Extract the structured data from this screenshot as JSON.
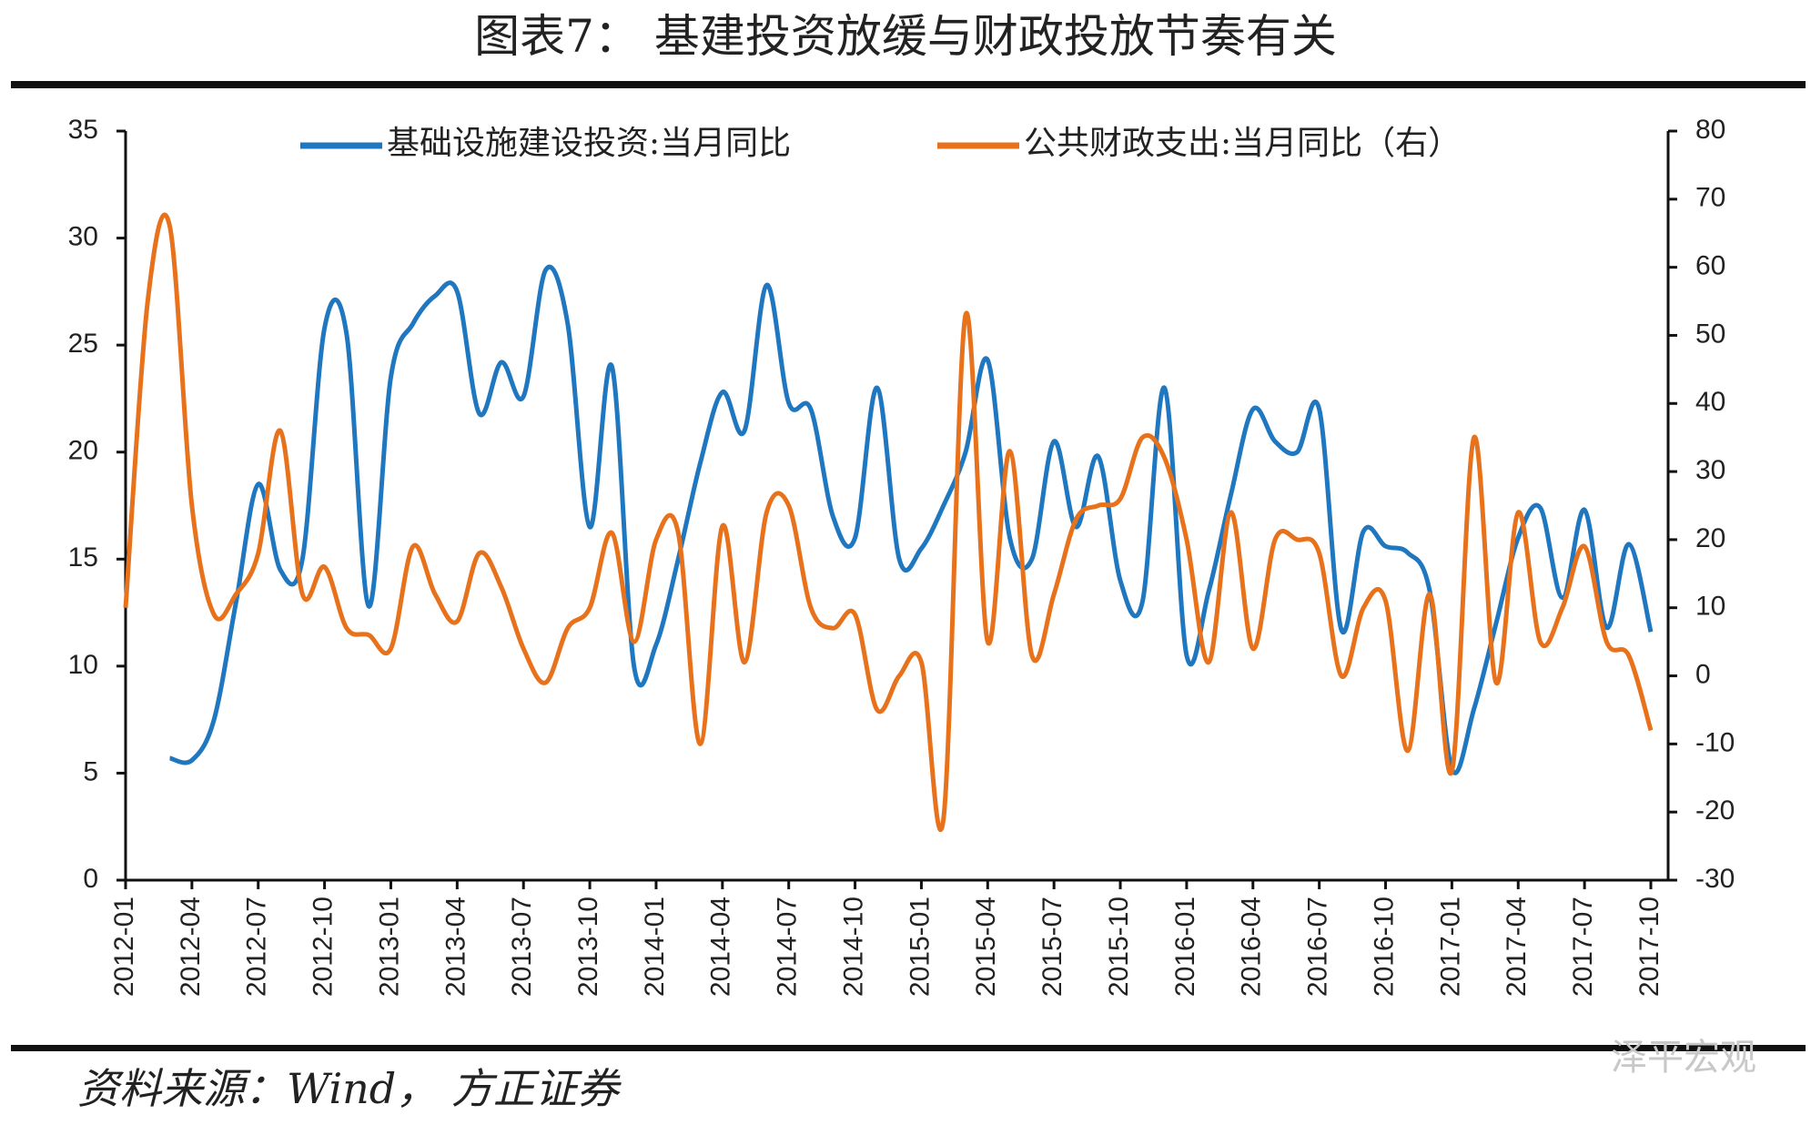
{
  "chart_data": {
    "type": "line",
    "title": "图表7： 基建投资放缓与财政投放节奏有关",
    "source": "资料来源：Wind， 方正证券",
    "watermark": "泽平宏观",
    "categories": [
      "2012-01",
      null,
      null,
      "2012-04",
      null,
      null,
      "2012-07",
      null,
      null,
      "2012-10",
      null,
      null,
      "2013-01",
      null,
      null,
      "2013-04",
      null,
      null,
      "2013-07",
      null,
      null,
      "2013-10",
      null,
      null,
      "2014-01",
      null,
      null,
      "2014-04",
      null,
      null,
      "2014-07",
      null,
      null,
      "2014-10",
      null,
      null,
      "2015-01",
      null,
      null,
      "2015-04",
      null,
      null,
      "2015-07",
      null,
      null,
      "2015-10",
      null,
      null,
      "2016-01",
      null,
      null,
      "2016-04",
      null,
      null,
      "2016-07",
      null,
      null,
      "2016-10",
      null,
      null,
      "2017-01",
      null,
      null,
      "2017-04",
      null,
      null,
      "2017-07",
      null,
      null,
      "2017-10"
    ],
    "series": [
      {
        "name": "基础设施建设投资:当月同比",
        "color": "#1f77c0",
        "values": [
          null,
          null,
          5.7,
          5.6,
          7.5,
          13,
          18.5,
          14.5,
          15,
          25.8,
          25.5,
          12.8,
          23.5,
          26,
          27.3,
          27.5,
          21.8,
          24.2,
          22.6,
          28.5,
          26,
          16.5,
          24,
          10,
          11,
          15,
          19.5,
          22.8,
          21,
          27.8,
          22.3,
          22,
          17,
          16,
          23,
          15,
          15.5,
          17.5,
          20,
          24.3,
          16,
          15,
          20.5,
          16.5,
          19.8,
          14,
          13,
          23,
          10.5,
          13.5,
          18,
          22,
          20.5,
          20,
          22,
          11.7,
          16.3,
          15.6,
          15.3,
          13.5,
          5.2,
          8,
          12,
          16,
          17.4,
          13.2,
          17.3,
          11.8,
          15.7,
          11.6
        ]
      },
      {
        "name": "公共财政支出:当月同比（右）",
        "color": "#e8721c",
        "axis": "y2",
        "values": [
          10,
          55,
          66,
          25,
          9,
          12,
          18,
          36,
          12,
          16,
          7,
          6,
          4,
          19,
          12,
          8,
          18,
          13,
          4,
          -1,
          7,
          10,
          21,
          5,
          20,
          21,
          -10,
          22,
          2,
          24,
          25,
          10,
          7,
          9,
          -5,
          0,
          2,
          -21,
          53,
          5,
          33,
          3,
          12,
          23,
          25,
          26,
          35,
          32,
          20,
          2,
          24,
          4,
          20,
          20,
          18,
          0,
          10,
          11,
          -11,
          12,
          -14,
          35,
          -1,
          24,
          5,
          10,
          19,
          5,
          3,
          -8
        ]
      }
    ],
    "ylim": [
      0,
      35
    ],
    "yticks": [
      0,
      5,
      10,
      15,
      20,
      25,
      30,
      35
    ],
    "y2lim": [
      -30,
      80
    ],
    "y2ticks": [
      -30,
      -20,
      -10,
      0,
      10,
      20,
      30,
      40,
      50,
      60,
      70,
      80
    ]
  }
}
